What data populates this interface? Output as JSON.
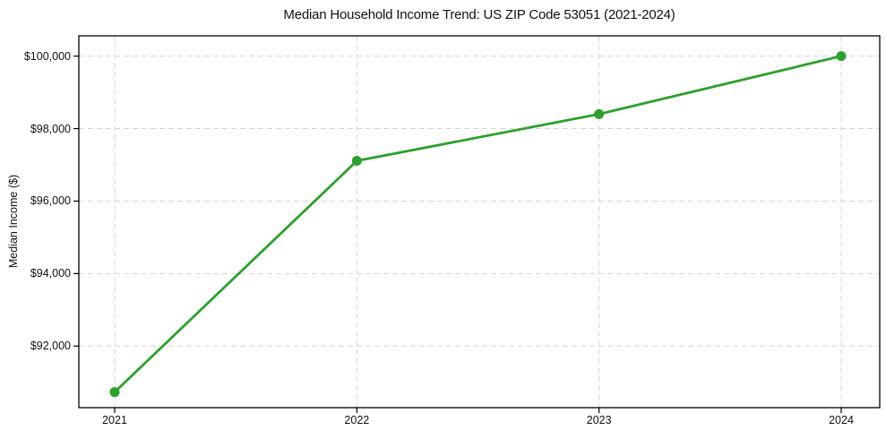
{
  "figure": {
    "background": "#ffffff",
    "text_color": "#111111",
    "spine_color": "#000000"
  },
  "chart_data": {
    "type": "line",
    "title": "Median Household Income Trend: US ZIP Code 53051 (2021-2024)",
    "xlabel": "",
    "ylabel": "Median Income ($)",
    "categories": [
      "2021",
      "2022",
      "2023",
      "2024"
    ],
    "values": [
      90730,
      97110,
      98400,
      100000
    ],
    "yticks": [
      92000,
      94000,
      96000,
      98000,
      100000
    ],
    "ytick_labels": [
      "$92,000",
      "$94,000",
      "$96,000",
      "$98,000",
      "$100,000"
    ],
    "xtick_labels": [
      "2021",
      "2022",
      "2023",
      "2024"
    ],
    "ylim": [
      90300,
      100560
    ],
    "grid": "dashed",
    "grid_color": "#d4d4d4",
    "legend": "none",
    "line_color": "#2ca02c",
    "marker": "circle",
    "marker_color": "#2ca02c"
  }
}
